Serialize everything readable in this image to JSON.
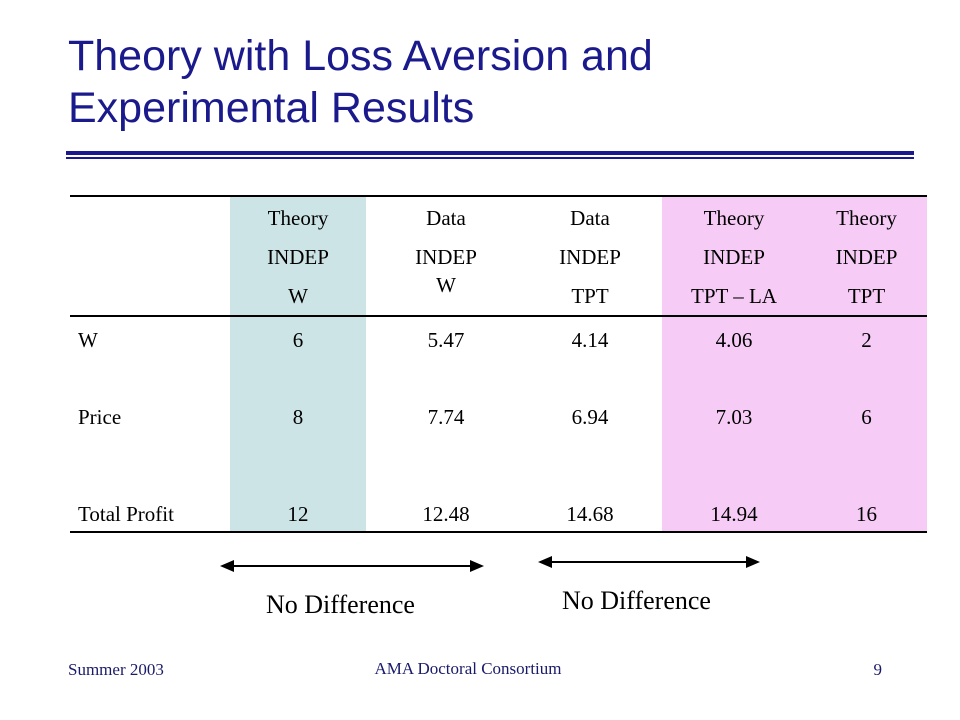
{
  "slide": {
    "title_line1": "Theory with Loss Aversion and",
    "title_line2": "Experimental Results"
  },
  "colors": {
    "title": "#1a1a8c",
    "theory_w_column": "#cde4e6",
    "loss_aversion_columns": "#f6ccf6"
  },
  "table": {
    "columns": [
      {
        "lines": [
          "Theory",
          "INDEP",
          "W"
        ]
      },
      {
        "lines": [
          "Data",
          "INDEP",
          "W"
        ]
      },
      {
        "lines": [
          "Data",
          "INDEP",
          "TPT"
        ]
      },
      {
        "lines": [
          "Theory",
          "INDEP",
          "TPT – LA"
        ]
      },
      {
        "lines": [
          "Theory",
          "INDEP",
          "TPT"
        ]
      }
    ],
    "rows": [
      {
        "label": "W",
        "values": [
          "6",
          "5.47",
          "4.14",
          "4.06",
          "2"
        ]
      },
      {
        "label": "Price",
        "values": [
          "8",
          "7.74",
          "6.94",
          "7.03",
          "6"
        ]
      },
      {
        "label": "Total Profit",
        "values": [
          "12",
          "12.48",
          "14.68",
          "14.94",
          "16"
        ]
      }
    ]
  },
  "annotations": {
    "left_label": "No Difference",
    "right_label": "No Difference"
  },
  "footer": {
    "left": "Summer 2003",
    "center": "AMA Doctoral Consortium",
    "page_number": "9"
  }
}
